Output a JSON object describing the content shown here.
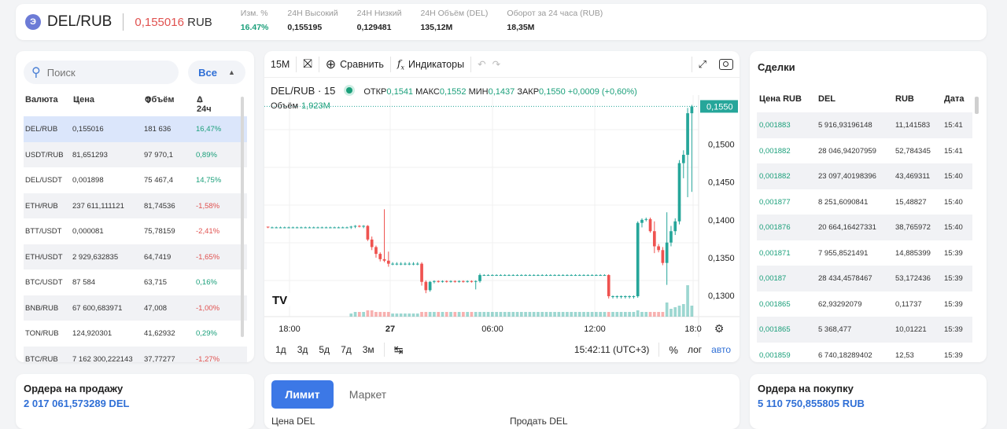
{
  "header": {
    "coin_icon": "Э",
    "pair": "DEL/RUB",
    "price": "0,155016",
    "price_currency": "RUB",
    "stats": [
      {
        "label": "Изм. %",
        "value": "16.47%",
        "positive": true
      },
      {
        "label": "24H Высокий",
        "value": "0,155195"
      },
      {
        "label": "24H Низкий",
        "value": "0,129481"
      },
      {
        "label": "24H Объём (DEL)",
        "value": "135,12M"
      },
      {
        "label": "Оборот за 24 часа (RUB)",
        "value": "18,35M"
      }
    ]
  },
  "markets": {
    "search_placeholder": "Поиск",
    "filter": "Все",
    "headers": {
      "currency": "Валюта",
      "price": "Цена",
      "volume": "Объём",
      "change": "Δ 24ч"
    },
    "rows": [
      {
        "pair": "DEL/RUB",
        "price": "0,155016",
        "volume": "181 636",
        "change": "16,47%",
        "positive": true,
        "selected": true
      },
      {
        "pair": "USDT/RUB",
        "price": "81,651293",
        "volume": "97 970,1",
        "change": "0,89%",
        "positive": true
      },
      {
        "pair": "DEL/USDT",
        "price": "0,001898",
        "volume": "75 467,4",
        "change": "14,75%",
        "positive": true
      },
      {
        "pair": "ETH/RUB",
        "price": "237 611,111121",
        "volume": "81,74536",
        "change": "-1,58%",
        "positive": false
      },
      {
        "pair": "BTT/USDT",
        "price": "0,000081",
        "volume": "75,78159",
        "change": "-2,41%",
        "positive": false
      },
      {
        "pair": "ETH/USDT",
        "price": "2 929,632835",
        "volume": "64,7419",
        "change": "-1,65%",
        "positive": false
      },
      {
        "pair": "BTC/USDT",
        "price": "87 584",
        "volume": "63,715",
        "change": "0,16%",
        "positive": true
      },
      {
        "pair": "BNB/RUB",
        "price": "67 600,683971",
        "volume": "47,008",
        "change": "-1,00%",
        "positive": false
      },
      {
        "pair": "TON/RUB",
        "price": "124,920301",
        "volume": "41,62932",
        "change": "0,29%",
        "positive": true
      },
      {
        "pair": "BTC/RUB",
        "price": "7 162 300,222143",
        "volume": "37,77277",
        "change": "-1,27%",
        "positive": false
      }
    ]
  },
  "chart_toolbar": {
    "interval": "15M",
    "compare": "Сравнить",
    "indicators": "Индикаторы"
  },
  "chart_info": {
    "symbol": "DEL/RUB · 15",
    "open_label": "ОТКР",
    "open": "0,1541",
    "high_label": "МАКС",
    "high": "0,1552",
    "low_label": "МИН",
    "low": "0,1437",
    "close_label": "ЗАКР",
    "close": "0,1550",
    "change": "+0,0009 (+0,60%)",
    "volume_label": "Объём",
    "volume": "1,923M"
  },
  "chart_data": {
    "type": "candlestick",
    "title": "DEL/RUB · 15",
    "y_ticks": [
      "0,1500",
      "0,1450",
      "0,1400",
      "0,1350",
      "0,1300"
    ],
    "last_price": "0,1550",
    "x_ticks": [
      "18:00",
      "27",
      "06:00",
      "12:00",
      "18:0"
    ],
    "ylim": [
      0.1272,
      0.1565
    ],
    "candles": [
      {
        "o": 0.1391,
        "h": 0.1391,
        "l": 0.1389,
        "c": 0.139,
        "v": 0
      },
      {
        "o": 0.139,
        "h": 0.1391,
        "l": 0.1389,
        "c": 0.139,
        "v": 0
      },
      {
        "o": 0.139,
        "h": 0.1391,
        "l": 0.1389,
        "c": 0.139,
        "v": 0
      },
      {
        "o": 0.139,
        "h": 0.1391,
        "l": 0.1389,
        "c": 0.139,
        "v": 0
      },
      {
        "o": 0.139,
        "h": 0.1391,
        "l": 0.1389,
        "c": 0.139,
        "v": 0
      },
      {
        "o": 0.139,
        "h": 0.1391,
        "l": 0.1389,
        "c": 0.139,
        "v": 0
      },
      {
        "o": 0.139,
        "h": 0.1391,
        "l": 0.1389,
        "c": 0.139,
        "v": 0
      },
      {
        "o": 0.139,
        "h": 0.1391,
        "l": 0.1389,
        "c": 0.139,
        "v": 0
      },
      {
        "o": 0.139,
        "h": 0.1391,
        "l": 0.1389,
        "c": 0.139,
        "v": 0
      },
      {
        "o": 0.139,
        "h": 0.1391,
        "l": 0.1389,
        "c": 0.139,
        "v": 0
      },
      {
        "o": 0.139,
        "h": 0.1391,
        "l": 0.1389,
        "c": 0.139,
        "v": 0
      },
      {
        "o": 0.139,
        "h": 0.1391,
        "l": 0.1389,
        "c": 0.139,
        "v": 0
      },
      {
        "o": 0.139,
        "h": 0.1391,
        "l": 0.1389,
        "c": 0.139,
        "v": 0
      },
      {
        "o": 0.139,
        "h": 0.1391,
        "l": 0.1389,
        "c": 0.139,
        "v": 0
      },
      {
        "o": 0.139,
        "h": 0.1391,
        "l": 0.1389,
        "c": 0.139,
        "v": 0
      },
      {
        "o": 0.139,
        "h": 0.1391,
        "l": 0.1389,
        "c": 0.139,
        "v": 0
      },
      {
        "o": 0.139,
        "h": 0.1391,
        "l": 0.1389,
        "c": 0.139,
        "v": 0
      },
      {
        "o": 0.139,
        "h": 0.1391,
        "l": 0.1389,
        "c": 0.139,
        "v": 0
      },
      {
        "o": 0.139,
        "h": 0.1391,
        "l": 0.1389,
        "c": 0.139,
        "v": 0
      },
      {
        "o": 0.139,
        "h": 0.1391,
        "l": 0.1389,
        "c": 0.139,
        "v": 0
      },
      {
        "o": 0.139,
        "h": 0.1392,
        "l": 0.1388,
        "c": 0.1391,
        "v": 2
      },
      {
        "o": 0.1391,
        "h": 0.1393,
        "l": 0.1389,
        "c": 0.1392,
        "v": 3
      },
      {
        "o": 0.1392,
        "h": 0.1393,
        "l": 0.139,
        "c": 0.1391,
        "v": 3
      },
      {
        "o": 0.1391,
        "h": 0.1393,
        "l": 0.1389,
        "c": 0.1392,
        "v": 3
      },
      {
        "o": 0.1392,
        "h": 0.1393,
        "l": 0.1372,
        "c": 0.1374,
        "v": 4
      },
      {
        "o": 0.1374,
        "h": 0.1378,
        "l": 0.136,
        "c": 0.1364,
        "v": 4
      },
      {
        "o": 0.1364,
        "h": 0.1366,
        "l": 0.135,
        "c": 0.1355,
        "v": 3
      },
      {
        "o": 0.1355,
        "h": 0.1357,
        "l": 0.1345,
        "c": 0.1348,
        "v": 3
      },
      {
        "o": 0.1348,
        "h": 0.1414,
        "l": 0.1344,
        "c": 0.1346,
        "v": 3
      },
      {
        "o": 0.1346,
        "h": 0.1358,
        "l": 0.1338,
        "c": 0.1342,
        "v": 3
      },
      {
        "o": 0.1342,
        "h": 0.1344,
        "l": 0.134,
        "c": 0.1342,
        "v": 2
      },
      {
        "o": 0.1342,
        "h": 0.1344,
        "l": 0.134,
        "c": 0.1342,
        "v": 2
      },
      {
        "o": 0.1342,
        "h": 0.1344,
        "l": 0.134,
        "c": 0.1342,
        "v": 2
      },
      {
        "o": 0.1342,
        "h": 0.1344,
        "l": 0.134,
        "c": 0.1342,
        "v": 2
      },
      {
        "o": 0.1342,
        "h": 0.1344,
        "l": 0.134,
        "c": 0.1342,
        "v": 2
      },
      {
        "o": 0.1342,
        "h": 0.1344,
        "l": 0.134,
        "c": 0.1342,
        "v": 2
      },
      {
        "o": 0.1342,
        "h": 0.1344,
        "l": 0.134,
        "c": 0.1342,
        "v": 2
      },
      {
        "o": 0.1342,
        "h": 0.1344,
        "l": 0.1313,
        "c": 0.1318,
        "v": 3
      },
      {
        "o": 0.1318,
        "h": 0.132,
        "l": 0.1303,
        "c": 0.1307,
        "v": 3
      },
      {
        "o": 0.1307,
        "h": 0.1319,
        "l": 0.1305,
        "c": 0.1318,
        "v": 3
      },
      {
        "o": 0.1318,
        "h": 0.132,
        "l": 0.1316,
        "c": 0.1319,
        "v": 3
      },
      {
        "o": 0.1319,
        "h": 0.132,
        "l": 0.1317,
        "c": 0.1318,
        "v": 3
      },
      {
        "o": 0.1318,
        "h": 0.132,
        "l": 0.1317,
        "c": 0.1319,
        "v": 3
      },
      {
        "o": 0.1319,
        "h": 0.132,
        "l": 0.1317,
        "c": 0.1318,
        "v": 3
      },
      {
        "o": 0.1318,
        "h": 0.132,
        "l": 0.1317,
        "c": 0.1319,
        "v": 3
      },
      {
        "o": 0.1319,
        "h": 0.132,
        "l": 0.1317,
        "c": 0.1318,
        "v": 3
      },
      {
        "o": 0.1318,
        "h": 0.132,
        "l": 0.1317,
        "c": 0.1319,
        "v": 3
      },
      {
        "o": 0.1319,
        "h": 0.132,
        "l": 0.1317,
        "c": 0.1318,
        "v": 3
      },
      {
        "o": 0.1318,
        "h": 0.132,
        "l": 0.1317,
        "c": 0.1319,
        "v": 3
      },
      {
        "o": 0.1319,
        "h": 0.132,
        "l": 0.1317,
        "c": 0.1318,
        "v": 3
      },
      {
        "o": 0.1318,
        "h": 0.132,
        "l": 0.1308,
        "c": 0.1319,
        "v": 3
      },
      {
        "o": 0.1319,
        "h": 0.1329,
        "l": 0.1317,
        "c": 0.1327,
        "v": 3
      },
      {
        "o": 0.1327,
        "h": 0.1328,
        "l": 0.1326,
        "c": 0.1327,
        "v": 3
      },
      {
        "o": 0.1327,
        "h": 0.1328,
        "l": 0.1326,
        "c": 0.1327,
        "v": 3
      },
      {
        "o": 0.1327,
        "h": 0.1328,
        "l": 0.1326,
        "c": 0.1327,
        "v": 3
      },
      {
        "o": 0.1327,
        "h": 0.1328,
        "l": 0.1326,
        "c": 0.1327,
        "v": 3
      },
      {
        "o": 0.1327,
        "h": 0.1328,
        "l": 0.1326,
        "c": 0.1327,
        "v": 3
      },
      {
        "o": 0.1327,
        "h": 0.1328,
        "l": 0.1326,
        "c": 0.1327,
        "v": 3
      },
      {
        "o": 0.1327,
        "h": 0.1328,
        "l": 0.1326,
        "c": 0.1327,
        "v": 3
      },
      {
        "o": 0.1327,
        "h": 0.1328,
        "l": 0.1326,
        "c": 0.1327,
        "v": 3
      },
      {
        "o": 0.1327,
        "h": 0.1328,
        "l": 0.1326,
        "c": 0.1327,
        "v": 3
      },
      {
        "o": 0.1327,
        "h": 0.1328,
        "l": 0.1326,
        "c": 0.1327,
        "v": 3
      },
      {
        "o": 0.1327,
        "h": 0.1328,
        "l": 0.1326,
        "c": 0.1327,
        "v": 3
      },
      {
        "o": 0.1327,
        "h": 0.1328,
        "l": 0.1326,
        "c": 0.1327,
        "v": 3
      },
      {
        "o": 0.1327,
        "h": 0.1328,
        "l": 0.1326,
        "c": 0.1327,
        "v": 3
      },
      {
        "o": 0.1327,
        "h": 0.1328,
        "l": 0.1326,
        "c": 0.1327,
        "v": 3
      },
      {
        "o": 0.1327,
        "h": 0.1328,
        "l": 0.1326,
        "c": 0.1327,
        "v": 3
      },
      {
        "o": 0.1327,
        "h": 0.1328,
        "l": 0.1326,
        "c": 0.1327,
        "v": 3
      },
      {
        "o": 0.1327,
        "h": 0.1328,
        "l": 0.1326,
        "c": 0.1327,
        "v": 3
      },
      {
        "o": 0.1327,
        "h": 0.1328,
        "l": 0.1326,
        "c": 0.1327,
        "v": 3
      },
      {
        "o": 0.1327,
        "h": 0.1328,
        "l": 0.1326,
        "c": 0.1327,
        "v": 3
      },
      {
        "o": 0.1327,
        "h": 0.1328,
        "l": 0.1326,
        "c": 0.1327,
        "v": 3
      },
      {
        "o": 0.1327,
        "h": 0.1328,
        "l": 0.1326,
        "c": 0.1327,
        "v": 3
      },
      {
        "o": 0.1327,
        "h": 0.1328,
        "l": 0.1326,
        "c": 0.1327,
        "v": 3
      },
      {
        "o": 0.1327,
        "h": 0.1328,
        "l": 0.1326,
        "c": 0.1327,
        "v": 3
      },
      {
        "o": 0.1327,
        "h": 0.1328,
        "l": 0.1326,
        "c": 0.1327,
        "v": 3
      },
      {
        "o": 0.1327,
        "h": 0.1328,
        "l": 0.1326,
        "c": 0.1327,
        "v": 3
      },
      {
        "o": 0.1327,
        "h": 0.1328,
        "l": 0.1326,
        "c": 0.1327,
        "v": 3
      },
      {
        "o": 0.1327,
        "h": 0.1328,
        "l": 0.1326,
        "c": 0.1327,
        "v": 3
      },
      {
        "o": 0.1327,
        "h": 0.1328,
        "l": 0.1326,
        "c": 0.1327,
        "v": 3
      },
      {
        "o": 0.1327,
        "h": 0.1328,
        "l": 0.1326,
        "c": 0.1327,
        "v": 3
      },
      {
        "o": 0.1327,
        "h": 0.1328,
        "l": 0.1326,
        "c": 0.1327,
        "v": 3
      },
      {
        "o": 0.1327,
        "h": 0.1328,
        "l": 0.1296,
        "c": 0.1299,
        "v": 3
      },
      {
        "o": 0.1299,
        "h": 0.13,
        "l": 0.1296,
        "c": 0.1299,
        "v": 3
      },
      {
        "o": 0.1299,
        "h": 0.13,
        "l": 0.1296,
        "c": 0.1299,
        "v": 3
      },
      {
        "o": 0.1299,
        "h": 0.13,
        "l": 0.1296,
        "c": 0.1299,
        "v": 3
      },
      {
        "o": 0.1299,
        "h": 0.13,
        "l": 0.1296,
        "c": 0.1299,
        "v": 3
      },
      {
        "o": 0.1299,
        "h": 0.13,
        "l": 0.1296,
        "c": 0.1299,
        "v": 3
      },
      {
        "o": 0.1299,
        "h": 0.13,
        "l": 0.1296,
        "c": 0.1299,
        "v": 3
      },
      {
        "o": 0.1299,
        "h": 0.1398,
        "l": 0.1297,
        "c": 0.1396,
        "v": 4
      },
      {
        "o": 0.1396,
        "h": 0.1402,
        "l": 0.139,
        "c": 0.14,
        "v": 3
      },
      {
        "o": 0.14,
        "h": 0.1403,
        "l": 0.1398,
        "c": 0.1401,
        "v": 3
      },
      {
        "o": 0.1401,
        "h": 0.1403,
        "l": 0.1383,
        "c": 0.1385,
        "v": 3
      },
      {
        "o": 0.1385,
        "h": 0.1398,
        "l": 0.1356,
        "c": 0.1365,
        "v": 3
      },
      {
        "o": 0.1365,
        "h": 0.1368,
        "l": 0.1357,
        "c": 0.136,
        "v": 3
      },
      {
        "o": 0.136,
        "h": 0.1364,
        "l": 0.134,
        "c": 0.1343,
        "v": 3
      },
      {
        "o": 0.1343,
        "h": 0.141,
        "l": 0.1314,
        "c": 0.137,
        "v": 9
      },
      {
        "o": 0.137,
        "h": 0.1392,
        "l": 0.1365,
        "c": 0.1385,
        "v": 5
      },
      {
        "o": 0.1385,
        "h": 0.1402,
        "l": 0.138,
        "c": 0.1398,
        "v": 6
      },
      {
        "o": 0.1398,
        "h": 0.1479,
        "l": 0.1394,
        "c": 0.1475,
        "v": 7
      },
      {
        "o": 0.1475,
        "h": 0.1492,
        "l": 0.1455,
        "c": 0.1486,
        "v": 8
      },
      {
        "o": 0.1486,
        "h": 0.1548,
        "l": 0.143,
        "c": 0.1541,
        "v": 20
      },
      {
        "o": 0.1541,
        "h": 0.1552,
        "l": 0.1437,
        "c": 0.155,
        "v": 7
      }
    ]
  },
  "chart_bottom": {
    "timeframes": [
      "1д",
      "3д",
      "5д",
      "7д",
      "3м"
    ],
    "time": "15:42:11 (UTC+3)",
    "percent": "%",
    "log": "лог",
    "auto": "авто"
  },
  "trades": {
    "title": "Сделки",
    "headers": {
      "price": "Цена RUB",
      "del": "DEL",
      "rub": "RUB",
      "date": "Дата"
    },
    "rows": [
      {
        "price": "0,001883",
        "del": "5 916,93196148",
        "rub": "11,141583",
        "date": "15:41"
      },
      {
        "price": "0,001882",
        "del": "28 046,94207959",
        "rub": "52,784345",
        "date": "15:41"
      },
      {
        "price": "0,001882",
        "del": "23 097,40198396",
        "rub": "43,469311",
        "date": "15:40"
      },
      {
        "price": "0,001877",
        "del": "8 251,6090841",
        "rub": "15,48827",
        "date": "15:40"
      },
      {
        "price": "0,001876",
        "del": "20 664,16427331",
        "rub": "38,765972",
        "date": "15:40"
      },
      {
        "price": "0,001871",
        "del": "7 955,8521491",
        "rub": "14,885399",
        "date": "15:39"
      },
      {
        "price": "0,00187",
        "del": "28 434,4578467",
        "rub": "53,172436",
        "date": "15:39"
      },
      {
        "price": "0,001865",
        "del": "62,93292079",
        "rub": "0,11737",
        "date": "15:39"
      },
      {
        "price": "0,001865",
        "del": "5 368,477",
        "rub": "10,01221",
        "date": "15:39"
      },
      {
        "price": "0,001859",
        "del": "6 740,18289402",
        "rub": "12,53",
        "date": "15:39"
      }
    ]
  },
  "sell_orders": {
    "title": "Ордера на продажу",
    "value": "2 017 061,573289 DEL"
  },
  "order_form": {
    "limit": "Лимит",
    "market": "Маркет",
    "left_label": "Цена DEL",
    "right_label": "Продать DEL"
  },
  "buy_orders": {
    "title": "Ордера на покупку",
    "value": "5 110 750,855805 RUB"
  },
  "colors": {
    "up": "#26a69a",
    "down": "#ef5350",
    "accent": "#2f6fd6"
  }
}
